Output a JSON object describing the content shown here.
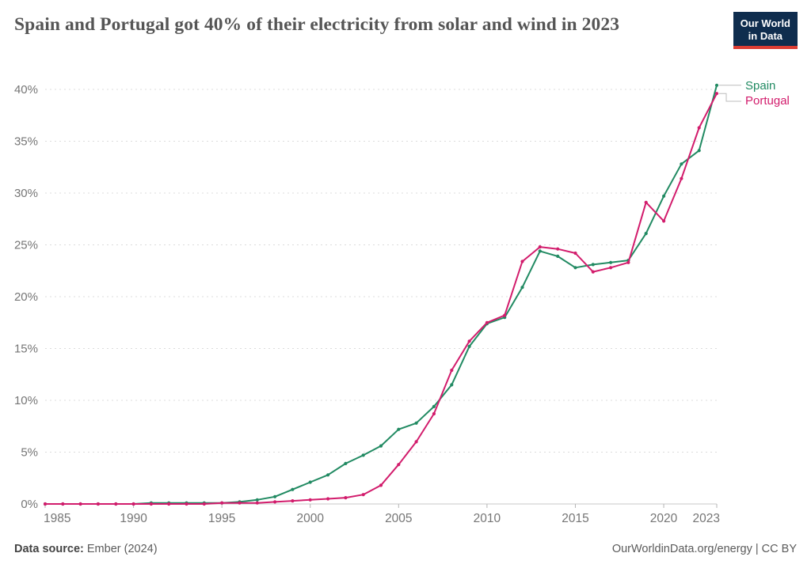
{
  "header": {
    "title": "Spain and Portugal got 40% of their electricity from solar and wind in 2023"
  },
  "logo": {
    "line1": "Our World",
    "line2": "in Data",
    "bg_color": "#0f2d4e",
    "accent_color": "#dc3d33"
  },
  "legend": {
    "spain": "Spain",
    "portugal": "Portugal"
  },
  "footer": {
    "source_label": "Data source:",
    "source_value": "Ember (2024)",
    "credit": "OurWorldinData.org/energy | CC BY"
  },
  "chart_data": {
    "type": "line",
    "title": "Share of electricity from solar and wind",
    "x": [
      1985,
      1986,
      1987,
      1988,
      1989,
      1990,
      1991,
      1992,
      1993,
      1994,
      1995,
      1996,
      1997,
      1998,
      1999,
      2000,
      2001,
      2002,
      2003,
      2004,
      2005,
      2006,
      2007,
      2008,
      2009,
      2010,
      2011,
      2012,
      2013,
      2014,
      2015,
      2016,
      2017,
      2018,
      2019,
      2020,
      2021,
      2022,
      2023
    ],
    "series": [
      {
        "name": "Spain",
        "color": "#218a62",
        "values": [
          0,
          0,
          0,
          0,
          0,
          0,
          0.1,
          0.1,
          0.1,
          0.1,
          0.1,
          0.2,
          0.4,
          0.7,
          1.4,
          2.1,
          2.8,
          3.9,
          4.7,
          5.6,
          7.2,
          7.8,
          9.4,
          11.5,
          15.2,
          17.4,
          18.0,
          20.9,
          24.4,
          23.9,
          22.8,
          23.1,
          23.3,
          23.5,
          26.1,
          29.7,
          32.8,
          34.1,
          40.4
        ]
      },
      {
        "name": "Portugal",
        "color": "#d21c6c",
        "values": [
          0,
          0,
          0,
          0,
          0,
          0,
          0,
          0,
          0,
          0,
          0.1,
          0.1,
          0.1,
          0.2,
          0.3,
          0.4,
          0.5,
          0.6,
          0.9,
          1.8,
          3.8,
          6.0,
          8.7,
          12.9,
          15.7,
          17.5,
          18.2,
          23.4,
          24.8,
          24.6,
          24.2,
          22.4,
          22.8,
          23.3,
          29.1,
          27.3,
          31.4,
          36.3,
          39.6
        ]
      }
    ],
    "yticks": [
      0,
      5,
      10,
      15,
      20,
      25,
      30,
      35,
      40
    ],
    "ytick_suffix": "%",
    "xticks": [
      1985,
      1990,
      1995,
      2000,
      2005,
      2010,
      2015,
      2020,
      2023
    ],
    "ylim": [
      0,
      40
    ],
    "xlim": [
      1985,
      2023
    ],
    "grid": "dashed-horizontal",
    "legend_position": "right-of-line-end"
  }
}
